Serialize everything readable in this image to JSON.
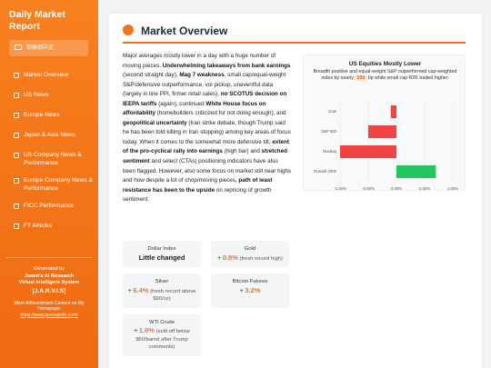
{
  "sidebar": {
    "title": "Daily Market Report",
    "language_button": "切換到中文",
    "nav": [
      "Market Overview",
      "US News",
      "Europe News",
      "Japan & Asia News",
      "US Company News & Performance",
      "Europe Company News & Performance",
      "FICC Performance",
      "FT Articles"
    ],
    "footer": {
      "generated_by": "Generated by",
      "author": "Jason's AI Research",
      "system": "Virtual Intelligent System",
      "acronym": "[J.A.R.V.I.S]",
      "more": "More AI/Investment Content on My Homepage:",
      "link": "https://www.jasonaiinfo.com/"
    }
  },
  "main": {
    "title": "Market Overview",
    "paragraph": [
      {
        "text": "Major averages mostly lower in a day with a huge number of moving pieces. "
      },
      {
        "text": "Underwhelming takeaways from bank earnings",
        "bold": true
      },
      {
        "text": " (second straight day), "
      },
      {
        "text": "Mag 7 weakness",
        "bold": true
      },
      {
        "text": ", small cap/equal-weight S&P/defensive outperformance, vol pickup, uneventful data (largely in line PPI, firmer retail sales), "
      },
      {
        "text": "no SCOTUS decision on IEEPA tariffs",
        "bold": true
      },
      {
        "text": " (again), continued "
      },
      {
        "text": "White House focus on affordability",
        "bold": true
      },
      {
        "text": " (homebuilders criticized for not doing enough), and "
      },
      {
        "text": "geopolitical uncertainty",
        "bold": true
      },
      {
        "text": " (Iran strike debate, though Trump said he has been told killing in Iran stopping) among key areas of focus today. When it comes to the somewhat more defensive tilt, "
      },
      {
        "text": "extent of the pro-cyclical rally into earnings",
        "bold": true
      },
      {
        "text": " (high bar) and "
      },
      {
        "text": "stretched sentiment",
        "bold": true
      },
      {
        "text": " and select (CTAs) positioning indicators have also been flagged. However, also some focus on market still near highs and how despite a lot of chop/moving pieces, "
      },
      {
        "text": "path of least resistance has been to the upside",
        "bold": true
      },
      {
        "text": " on repricing of growth sentiment."
      }
    ],
    "cards": [
      {
        "name": "Dollar Index",
        "summary": "Little changed"
      },
      {
        "name": "Gold",
        "sign": "+",
        "change": "0.8%",
        "note": "(fresh record high)"
      },
      {
        "name": "Silver",
        "sign": "+",
        "change": "6.4%",
        "note": "(fresh record above $90/oz)"
      },
      {
        "name": "Bitcoin Futures",
        "sign": "+",
        "change": "3.2%"
      },
      {
        "name": "WTI Crude",
        "sign": "+",
        "change": "1.6%",
        "note": "(sold off below $60/barrel after Trump comments)"
      }
    ]
  },
  "chart_data": {
    "type": "bar",
    "orientation": "horizontal",
    "title": "US Equities Mostly Lower",
    "subtitle": [
      {
        "text": "Breadth positive and equal-weight S&P outperformed cap-weighted index by nearly "
      },
      {
        "text": "100",
        "highlight": true
      },
      {
        "text": " bp while small cap R2K traded higher."
      }
    ],
    "categories": [
      "Dow",
      "S&P 500",
      "Nasdaq",
      "Russell 2000"
    ],
    "values": [
      -0.1,
      -0.5,
      -1.0,
      0.7
    ],
    "colors": {
      "negative": "#ef4444",
      "positive": "#22c55e"
    },
    "xlim": [
      -1,
      1
    ],
    "xticks": [
      {
        "value": -1,
        "label": "-1.00%"
      },
      {
        "value": -0.5,
        "label": "-0.50%"
      },
      {
        "value": 0,
        "label": "0.00%"
      },
      {
        "value": 0.5,
        "label": "0.50%"
      },
      {
        "value": 1,
        "label": "1.00%"
      }
    ],
    "grid": true
  }
}
